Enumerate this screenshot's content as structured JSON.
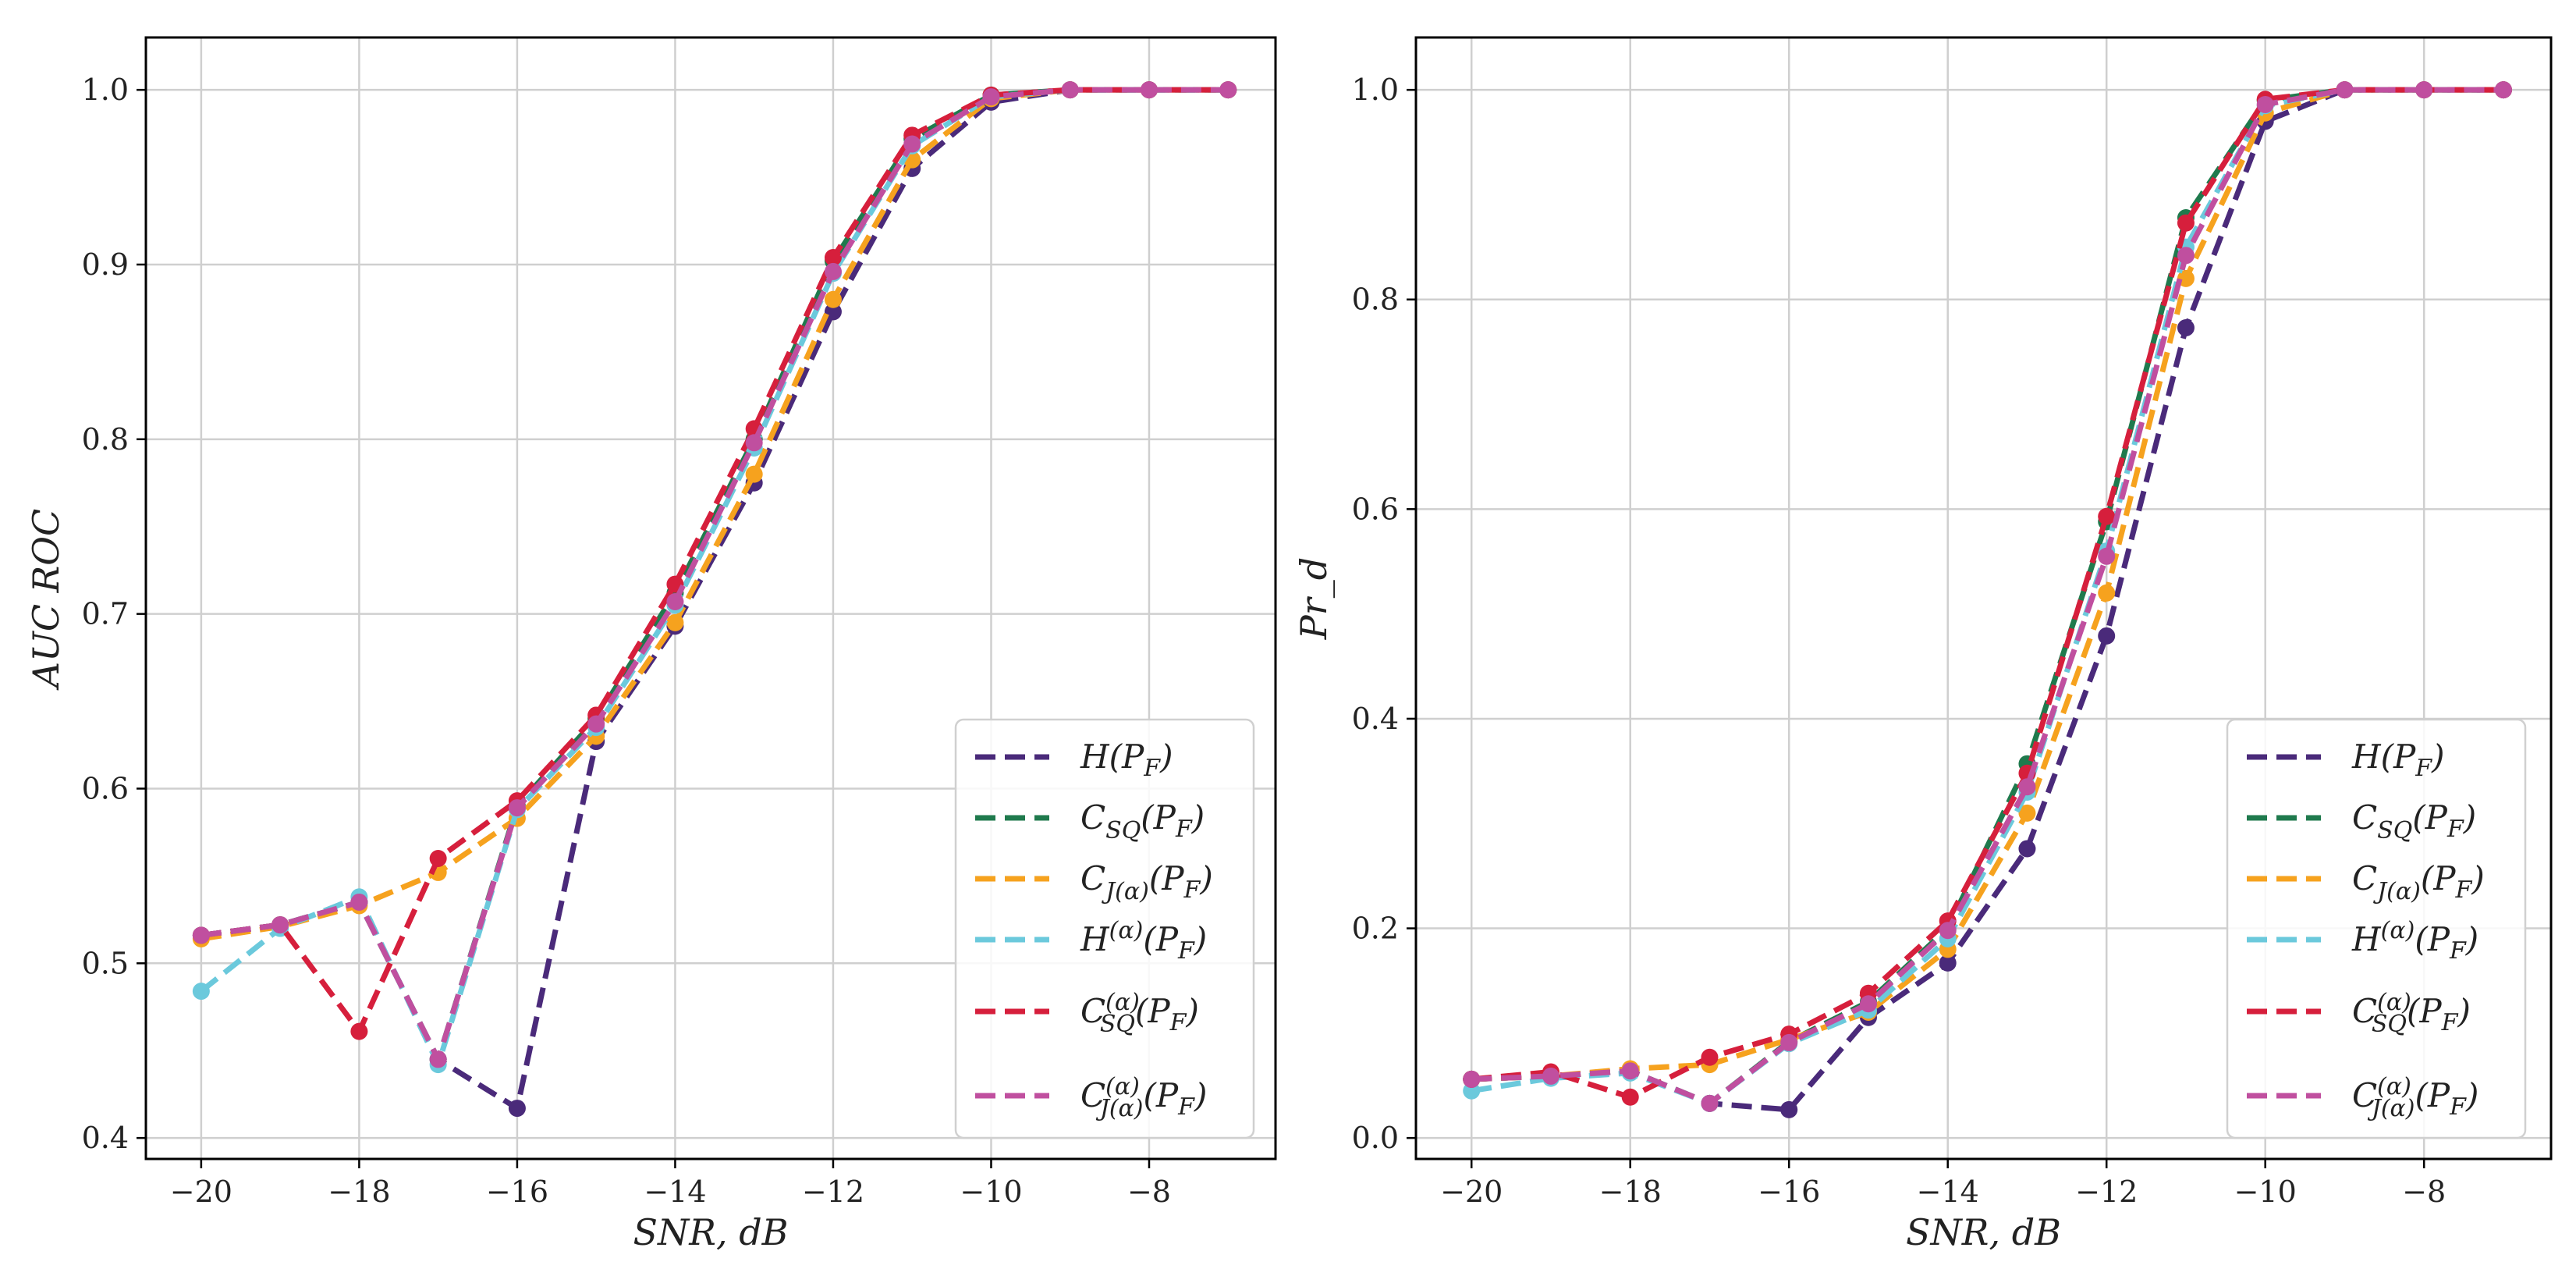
{
  "chart_data": [
    {
      "type": "line",
      "title": "",
      "xlabel": "SNR, dB",
      "ylabel": "AUC ROC",
      "xlim": [
        -20.7,
        -6.4
      ],
      "ylim": [
        0.388,
        1.03
      ],
      "xticks": [
        -20,
        -18,
        -16,
        -14,
        -12,
        -10,
        -8
      ],
      "xtick_labels": [
        "−20",
        "−18",
        "−16",
        "−14",
        "−12",
        "−10",
        "−8"
      ],
      "yticks": [
        0.4,
        0.5,
        0.6,
        0.7,
        0.8,
        0.9,
        1.0
      ],
      "ytick_labels": [
        "0.4",
        "0.5",
        "0.6",
        "0.7",
        "0.8",
        "0.9",
        "1.0"
      ],
      "grid": true,
      "legend_position": "bottom-right",
      "x": [
        -20,
        -19,
        -18,
        -17,
        -16,
        -15,
        -14,
        -13,
        -12,
        -11,
        -10,
        -9,
        -8,
        -7
      ],
      "series": [
        {
          "name": "H(P_F)",
          "color": "#4a2a7a",
          "values": [
            0.516,
            0.522,
            0.535,
            0.445,
            0.417,
            0.627,
            0.693,
            0.775,
            0.873,
            0.955,
            0.993,
            1.0,
            1.0,
            1.0
          ]
        },
        {
          "name": "C_SQ(P_F)",
          "color": "#1f7a4d",
          "values": [
            0.516,
            0.522,
            0.535,
            0.445,
            0.59,
            0.64,
            0.712,
            0.8,
            0.902,
            0.972,
            0.997,
            1.0,
            1.0,
            1.0
          ]
        },
        {
          "name": "C_J(α)(P_F)",
          "color": "#f6a21e",
          "values": [
            0.514,
            0.521,
            0.533,
            0.552,
            0.583,
            0.63,
            0.695,
            0.78,
            0.88,
            0.96,
            0.995,
            1.0,
            1.0,
            1.0
          ]
        },
        {
          "name": "H^(α)(P_F)",
          "color": "#6bc9dc",
          "values": [
            0.484,
            0.52,
            0.538,
            0.442,
            0.588,
            0.635,
            0.705,
            0.795,
            0.895,
            0.968,
            0.996,
            1.0,
            1.0,
            1.0
          ]
        },
        {
          "name": "C_SQ^(α)(P_F)",
          "color": "#d61f3c",
          "values": [
            0.516,
            0.522,
            0.461,
            0.56,
            0.593,
            0.642,
            0.717,
            0.806,
            0.904,
            0.974,
            0.997,
            1.0,
            1.0,
            1.0
          ]
        },
        {
          "name": "C_J(α)^(α)(P_F)",
          "color": "#c04f9f",
          "values": [
            0.516,
            0.522,
            0.535,
            0.445,
            0.589,
            0.637,
            0.707,
            0.798,
            0.896,
            0.969,
            0.996,
            1.0,
            1.0,
            1.0
          ]
        }
      ]
    },
    {
      "type": "line",
      "title": "",
      "xlabel": "SNR, dB",
      "ylabel": "Pr_d",
      "xlim": [
        -20.7,
        -6.4
      ],
      "ylim": [
        -0.02,
        1.05
      ],
      "xticks": [
        -20,
        -18,
        -16,
        -14,
        -12,
        -10,
        -8
      ],
      "xtick_labels": [
        "−20",
        "−18",
        "−16",
        "−14",
        "−12",
        "−10",
        "−8"
      ],
      "yticks": [
        0.0,
        0.2,
        0.4,
        0.6,
        0.8,
        1.0
      ],
      "ytick_labels": [
        "0.0",
        "0.2",
        "0.4",
        "0.6",
        "0.8",
        "1.0"
      ],
      "grid": true,
      "legend_position": "bottom-right",
      "x": [
        -20,
        -19,
        -18,
        -17,
        -16,
        -15,
        -14,
        -13,
        -12,
        -11,
        -10,
        -9,
        -8,
        -7
      ],
      "series": [
        {
          "name": "H(P_F)",
          "color": "#4a2a7a",
          "values": [
            0.056,
            0.059,
            0.064,
            0.033,
            0.027,
            0.115,
            0.167,
            0.276,
            0.479,
            0.773,
            0.97,
            1.0,
            1.0,
            1.0
          ]
        },
        {
          "name": "C_SQ(P_F)",
          "color": "#1f7a4d",
          "values": [
            0.056,
            0.059,
            0.064,
            0.033,
            0.092,
            0.13,
            0.2,
            0.357,
            0.588,
            0.878,
            0.99,
            1.0,
            1.0,
            1.0
          ]
        },
        {
          "name": "C_J(α)(P_F)",
          "color": "#f6a21e",
          "values": [
            0.056,
            0.059,
            0.066,
            0.07,
            0.094,
            0.12,
            0.18,
            0.31,
            0.52,
            0.82,
            0.978,
            1.0,
            1.0,
            1.0
          ]
        },
        {
          "name": "H^(α)(P_F)",
          "color": "#6bc9dc",
          "values": [
            0.045,
            0.057,
            0.062,
            0.033,
            0.09,
            0.122,
            0.19,
            0.33,
            0.56,
            0.85,
            0.985,
            1.0,
            1.0,
            1.0
          ]
        },
        {
          "name": "C_SQ^(α)(P_F)",
          "color": "#d61f3c",
          "values": [
            0.056,
            0.063,
            0.039,
            0.077,
            0.099,
            0.138,
            0.207,
            0.348,
            0.593,
            0.873,
            0.991,
            1.0,
            1.0,
            1.0
          ]
        },
        {
          "name": "C_J(α)^(α)(P_F)",
          "color": "#c04f9f",
          "values": [
            0.056,
            0.059,
            0.064,
            0.033,
            0.091,
            0.128,
            0.198,
            0.335,
            0.555,
            0.842,
            0.986,
            1.0,
            1.0,
            1.0
          ]
        }
      ]
    }
  ]
}
